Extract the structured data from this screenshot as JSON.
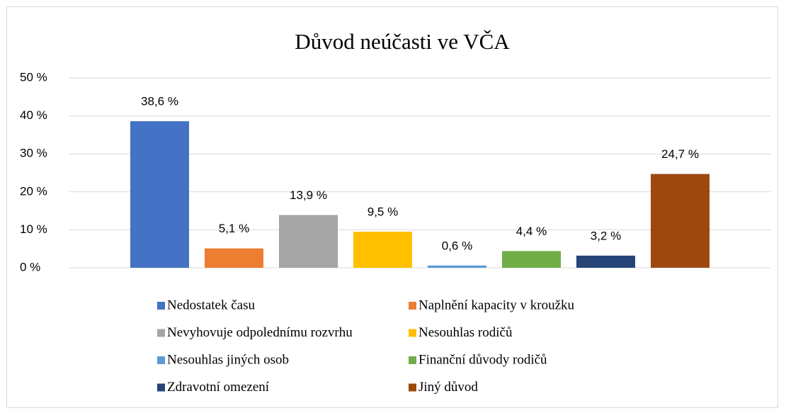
{
  "chart_data": {
    "type": "bar",
    "title": "Důvod neúčasti ve VČA",
    "series": [
      {
        "name": "Nedostatek času",
        "color": "#4472c4",
        "values": [
          38.6
        ],
        "value_labels": [
          "38,6 %"
        ]
      },
      {
        "name": "Naplnění kapacity v kroužku",
        "color": "#ed7d31",
        "values": [
          5.1
        ],
        "value_labels": [
          "5,1 %"
        ]
      },
      {
        "name": "Nevyhovuje odpolednímu rozvrhu",
        "color": "#a5a5a5",
        "values": [
          13.9
        ],
        "value_labels": [
          "13,9 %"
        ]
      },
      {
        "name": "Nesouhlas rodičů",
        "color": "#ffc000",
        "values": [
          9.5
        ],
        "value_labels": [
          "9,5 %"
        ]
      },
      {
        "name": "Nesouhlas jiných osob",
        "color": "#5b9bd5",
        "values": [
          0.6
        ],
        "value_labels": [
          "0,6 %"
        ]
      },
      {
        "name": "Finanční důvody rodičů",
        "color": "#70ad47",
        "values": [
          4.4
        ],
        "value_labels": [
          "4,4 %"
        ]
      },
      {
        "name": "Zdravotní omezení",
        "color": "#264478",
        "values": [
          3.2
        ],
        "value_labels": [
          "3,2 %"
        ]
      },
      {
        "name": "Jiný důvod",
        "color": "#9e480e",
        "values": [
          24.7
        ],
        "value_labels": [
          "24,7 %"
        ]
      }
    ],
    "ylim": [
      0,
      50
    ],
    "yticks": [
      {
        "value": 0,
        "label": "0 %"
      },
      {
        "value": 10,
        "label": "10 %"
      },
      {
        "value": 20,
        "label": "20 %"
      },
      {
        "value": 30,
        "label": "30 %"
      },
      {
        "value": 40,
        "label": "40 %"
      },
      {
        "value": 50,
        "label": "50 %"
      }
    ],
    "grid": true
  }
}
